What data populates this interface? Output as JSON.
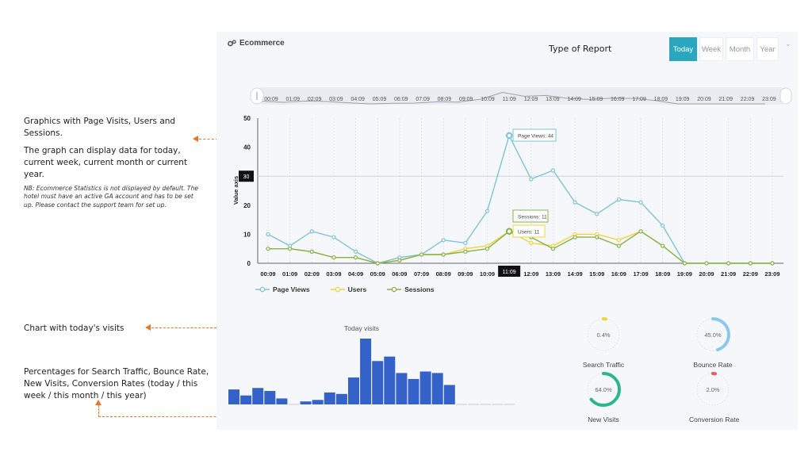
{
  "annotations": {
    "graphics_title": "Graphics with Page Visits, Users and Sessions.",
    "graphics_desc": "The graph can display data for today, current week, current month or current year.",
    "graphics_nb": "NB: Ecommerce Statistics is not displayed by default. The hotel must have an active GA account and has to be set up. Please contact the support team for set up.",
    "today_chart": "Chart with today's visits",
    "percentages": "Percentages for Search Traffic, Bounce Rate, New Visits, Conversion Rates (today / this week / this month / this year)",
    "report_type": "Type of Report"
  },
  "panel": {
    "title": "Ecommerce",
    "title_icon": "gears-icon"
  },
  "report_buttons": [
    {
      "label": "Today",
      "active": true
    },
    {
      "label": "Week",
      "active": false
    },
    {
      "label": "Month",
      "active": false
    },
    {
      "label": "Year",
      "active": false
    }
  ],
  "colors": {
    "accent": "#2aa7be",
    "annotation": "#e3772a",
    "page_views": "#7ec4d6",
    "users": "#f0d43a",
    "sessions": "#86b24e",
    "bars": "#3462c9"
  },
  "chart_data": [
    {
      "type": "line",
      "categories": [
        "00:09",
        "01:09",
        "02:09",
        "03:09",
        "04:09",
        "05:09",
        "06:09",
        "07:09",
        "08:09",
        "09:09",
        "10:09",
        "11:09",
        "12:09",
        "13:09",
        "14:09",
        "15:09",
        "16:09",
        "17:09",
        "18:09",
        "19:09",
        "20:09",
        "21:09",
        "22:09",
        "23:09"
      ],
      "series": [
        {
          "name": "Page Views",
          "values": [
            10,
            6,
            11,
            9,
            4,
            0,
            2,
            3,
            8,
            7,
            18,
            44,
            29,
            32,
            21,
            17,
            22,
            21,
            13,
            0,
            0,
            0,
            0,
            0
          ]
        },
        {
          "name": "Users",
          "values": [
            5,
            5,
            4,
            2,
            2,
            0,
            1,
            3,
            3,
            5,
            6,
            11,
            7,
            6,
            10,
            10,
            8,
            11,
            6,
            0,
            0,
            0,
            0,
            0
          ]
        },
        {
          "name": "Sessions",
          "values": [
            5,
            5,
            4,
            2,
            2,
            0,
            1,
            3,
            3,
            4,
            5,
            11,
            9,
            5,
            9,
            9,
            6,
            11,
            6,
            0,
            0,
            0,
            0,
            0
          ]
        }
      ],
      "ylabel": "Value axis",
      "yticks": [
        0,
        10,
        20,
        30,
        40,
        50
      ],
      "ylim": [
        0,
        50
      ],
      "crosshair_value": "30",
      "crosshair_category": "11:09",
      "tooltips": [
        "Page Views: 44",
        "Sessions: 11",
        "Users: 11"
      ],
      "navigator_labels": [
        "00:09",
        "01:09",
        "02:09",
        "03:09",
        "04:09",
        "05:09",
        "06:09",
        "07:09",
        "08:09",
        "09:09",
        "10:09",
        "11:09",
        "12:09",
        "13:09",
        "14:09",
        "15:09",
        "16:09",
        "17:09",
        "18:09",
        "19:09",
        "20:09",
        "21:09",
        "22:09",
        "23:09"
      ],
      "legend": "bottom-left"
    },
    {
      "type": "bar",
      "title": "Today visits",
      "values": [
        10,
        6,
        11,
        9,
        4,
        0,
        2,
        3,
        8,
        7,
        18,
        44,
        29,
        32,
        21,
        17,
        22,
        21,
        13,
        0,
        0,
        0,
        0,
        0
      ]
    }
  ],
  "gauges": [
    {
      "label": "Search Traffic",
      "value_text": "0.4%",
      "value": 0.4,
      "color": "#f0d43a"
    },
    {
      "label": "Bounce Rate",
      "value_text": "45.0%",
      "value": 45.0,
      "color": "#8cc8ec"
    },
    {
      "label": "New Visits",
      "value_text": "64.0%",
      "value": 64.0,
      "color": "#2cb58e"
    },
    {
      "label": "Conversion Rate",
      "value_text": "2.0%",
      "value": 2.0,
      "color": "#ee5a5a"
    }
  ]
}
